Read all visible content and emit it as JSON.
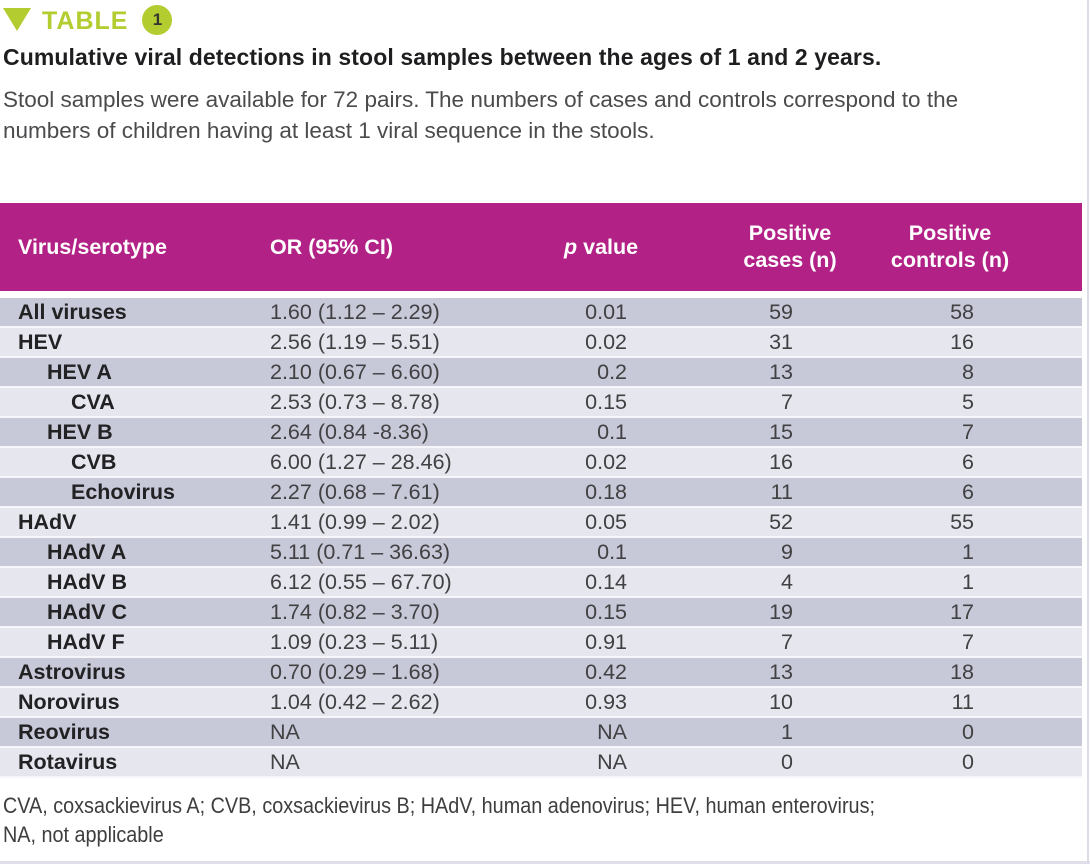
{
  "badge": {
    "label": "TABLE",
    "number": "1",
    "color": "#b3cc2f"
  },
  "title": "Cumulative viral detections in stool samples between the ages of 1 and 2 years.",
  "description_lines": [
    "Stool samples were available for 72 pairs. The numbers of cases and controls correspond to the",
    "numbers of children having at least 1 viral sequence in the stools."
  ],
  "table": {
    "header_bg_color": "#b22286",
    "stripe_dark_color": "#c7c8d8",
    "stripe_light_color": "#e6e6ef",
    "header": {
      "virus": "Virus/serotype",
      "or": "OR (95% CI)",
      "p_italic": "p",
      "p_rest": "value",
      "cases_line1": "Positive",
      "cases_line2": "cases (n)",
      "controls_line1": "Positive",
      "controls_line2": "controls (n)"
    },
    "rows": [
      {
        "virus": "All viruses",
        "indent": 0,
        "or_ci": "1.60 (1.12 – 2.29)",
        "p": "0.01",
        "cases": "59",
        "controls": "58"
      },
      {
        "virus": "HEV",
        "indent": 0,
        "or_ci": "2.56 (1.19 – 5.51)",
        "p": "0.02",
        "cases": "31",
        "controls": "16"
      },
      {
        "virus": "HEV A",
        "indent": 1,
        "or_ci": "2.10 (0.67 – 6.60)",
        "p": "0.2",
        "cases": "13",
        "controls": "8"
      },
      {
        "virus": "CVA",
        "indent": 2,
        "or_ci": "2.53 (0.73 – 8.78)",
        "p": "0.15",
        "cases": "7",
        "controls": "5"
      },
      {
        "virus": "HEV B",
        "indent": 1,
        "or_ci": "2.64 (0.84 -8.36)",
        "p": "0.1",
        "cases": "15",
        "controls": "7"
      },
      {
        "virus": "CVB",
        "indent": 2,
        "or_ci": "6.00 (1.27 – 28.46)",
        "p": "0.02",
        "cases": "16",
        "controls": "6"
      },
      {
        "virus": "Echovirus",
        "indent": 2,
        "or_ci": "2.27 (0.68 – 7.61)",
        "p": "0.18",
        "cases": "11",
        "controls": "6"
      },
      {
        "virus": "HAdV",
        "indent": 0,
        "or_ci": "1.41 (0.99 – 2.02)",
        "p": "0.05",
        "cases": "52",
        "controls": "55"
      },
      {
        "virus": "HAdV A",
        "indent": 1,
        "or_ci": "5.11 (0.71 – 36.63)",
        "p": "0.1",
        "cases": "9",
        "controls": "1"
      },
      {
        "virus": "HAdV B",
        "indent": 1,
        "or_ci": "6.12 (0.55 – 67.70)",
        "p": "0.14",
        "cases": "4",
        "controls": "1"
      },
      {
        "virus": "HAdV C",
        "indent": 1,
        "or_ci": "1.74 (0.82 – 3.70)",
        "p": "0.15",
        "cases": "19",
        "controls": "17"
      },
      {
        "virus": "HAdV F",
        "indent": 1,
        "or_ci": "1.09 (0.23 – 5.11)",
        "p": "0.91",
        "cases": "7",
        "controls": "7"
      },
      {
        "virus": "Astrovirus",
        "indent": 0,
        "or_ci": "0.70 (0.29 – 1.68)",
        "p": "0.42",
        "cases": "13",
        "controls": "18"
      },
      {
        "virus": "Norovirus",
        "indent": 0,
        "or_ci": "1.04 (0.42 – 2.62)",
        "p": "0.93",
        "cases": "10",
        "controls": "11"
      },
      {
        "virus": "Reovirus",
        "indent": 0,
        "or_ci": "NA",
        "p": "NA",
        "cases": "1",
        "controls": "0"
      },
      {
        "virus": "Rotavirus",
        "indent": 0,
        "or_ci": "NA",
        "p": "NA",
        "cases": "0",
        "controls": "0"
      }
    ]
  },
  "footnote_lines": [
    "CVA, coxsackievirus A; CVB, coxsackievirus B; HAdV, human adenovirus; HEV, human enterovirus;",
    "NA, not applicable"
  ]
}
